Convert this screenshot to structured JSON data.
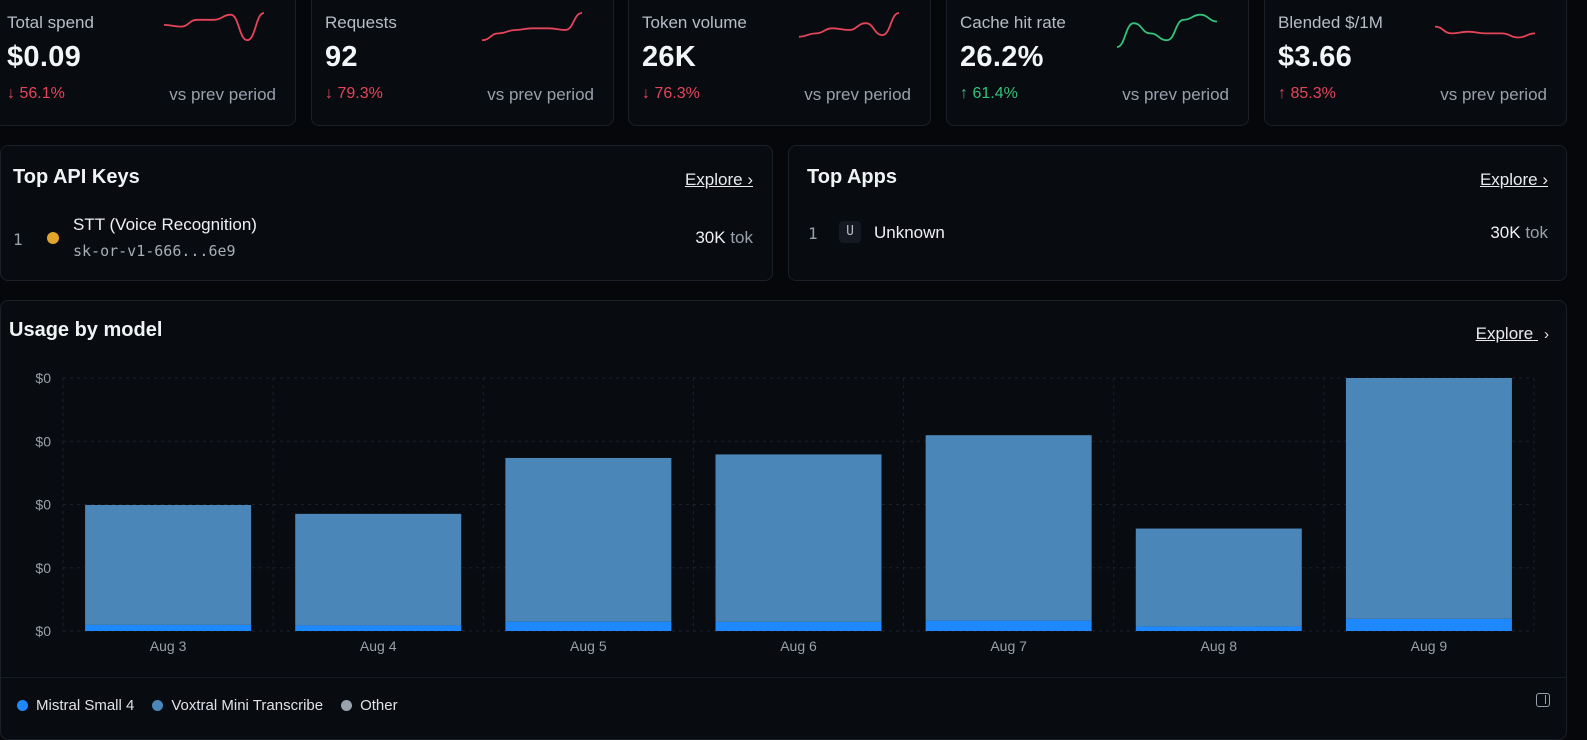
{
  "stats": [
    {
      "label": "Total spend",
      "value": "$0.09",
      "delta": "↓ 56.1%",
      "delta_dir": "neg",
      "vs": "vs prev period",
      "spark": [
        0.35,
        0.4,
        0.2,
        0.2,
        0.05,
        0.8,
        0.0
      ],
      "spark_color": "#e5455a"
    },
    {
      "label": "Requests",
      "value": "92",
      "delta": "↓ 79.3%",
      "delta_dir": "neg",
      "vs": "vs prev period",
      "spark": [
        0.8,
        0.6,
        0.5,
        0.45,
        0.45,
        0.5,
        0.0
      ],
      "spark_color": "#e5455a"
    },
    {
      "label": "Token volume",
      "value": "26K",
      "delta": "↓ 76.3%",
      "delta_dir": "neg",
      "vs": "vs prev period",
      "spark": [
        0.7,
        0.6,
        0.45,
        0.5,
        0.3,
        0.65,
        0.0
      ],
      "spark_color": "#e5455a"
    },
    {
      "label": "Cache hit rate",
      "value": "26.2%",
      "delta": "↑ 61.4%",
      "delta_dir": "pos",
      "vs": "vs prev period",
      "spark": [
        1.0,
        0.3,
        0.6,
        0.8,
        0.2,
        0.05,
        0.25
      ],
      "spark_color": "#33c27a"
    },
    {
      "label": "Blended $/1M",
      "value": "$3.66",
      "delta": "↑ 85.3%",
      "delta_dir": "neg",
      "vs": "vs prev period",
      "spark": [
        0.4,
        0.6,
        0.55,
        0.6,
        0.6,
        0.72,
        0.6
      ],
      "spark_color": "#e5455a"
    }
  ],
  "top_api_keys": {
    "title": "Top API Keys",
    "explore": "Explore ›",
    "rows": [
      {
        "rank": "1",
        "name": "STT (Voice Recognition)",
        "key": "sk-or-v1-666...6e9",
        "tok_value": "30K",
        "tok_unit": "tok",
        "dot_color": "#e0a52a"
      }
    ]
  },
  "top_apps": {
    "title": "Top Apps",
    "explore": "Explore ›",
    "rows": [
      {
        "rank": "1",
        "badge": "U",
        "name": "Unknown",
        "tok_value": "30K",
        "tok_unit": "tok"
      }
    ]
  },
  "usage": {
    "title": "Usage by model",
    "explore": "Explore",
    "explore_icon": "chevron-right-icon",
    "legend": [
      {
        "name": "Mistral Small 4",
        "color": "#1e88ff"
      },
      {
        "name": "Voxtral Mini Transcribe",
        "color": "#4a86b8"
      },
      {
        "name": "Other",
        "color": "#9aa3ad"
      }
    ]
  },
  "chart_data": {
    "type": "bar",
    "stacked": true,
    "categories": [
      "Aug 3",
      "Aug 4",
      "Aug 5",
      "Aug 6",
      "Aug 7",
      "Aug 8",
      "Aug 9"
    ],
    "yticks": [
      "$0",
      "$0",
      "$0",
      "$0",
      "$0"
    ],
    "series": [
      {
        "name": "Mistral Small 4",
        "color": "#1e88ff",
        "values": [
          0.024,
          0.022,
          0.037,
          0.036,
          0.041,
          0.018,
          0.048
        ]
      },
      {
        "name": "Voxtral Mini Transcribe",
        "color": "#4a86b8",
        "values": [
          0.474,
          0.441,
          0.647,
          0.662,
          0.733,
          0.387,
          0.952
        ]
      }
    ],
    "ylim": [
      0,
      1.0
    ],
    "grid": true
  }
}
